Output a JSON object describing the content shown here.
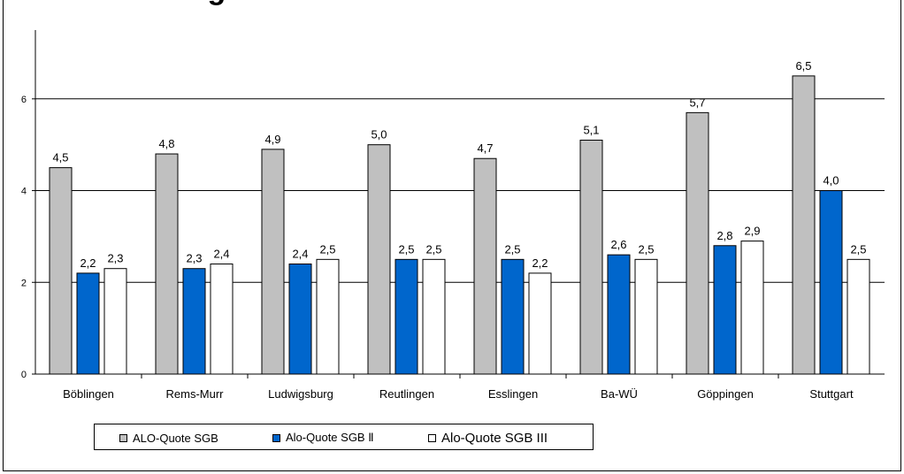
{
  "title": "…ote im Vergleich",
  "colors": {
    "sgb": "#C0C0C0",
    "sgb2": "#0066CC",
    "sgb3": "#FFFFFF"
  },
  "chart_data": {
    "type": "bar",
    "categories": [
      "Böblingen",
      "Rems-Murr",
      "Ludwigsburg",
      "Reutlingen",
      "Esslingen",
      "Ba-WÜ",
      "Göppingen",
      "Stuttgart"
    ],
    "series": [
      {
        "name": "ALO-Quote SGB",
        "values": [
          4.5,
          4.8,
          4.9,
          5.0,
          4.7,
          5.1,
          5.7,
          6.5
        ],
        "labels": [
          "4,5",
          "4,8",
          "4,9",
          "5,0",
          "4,7",
          "5,1",
          "5,7",
          "6,5"
        ]
      },
      {
        "name": "Alo-Quote SGB Ⅱ",
        "values": [
          2.2,
          2.3,
          2.4,
          2.5,
          2.5,
          2.6,
          2.8,
          4.0
        ],
        "labels": [
          "2,2",
          "2,3",
          "2,4",
          "2,5",
          "2,5",
          "2,6",
          "2,8",
          "4,0"
        ]
      },
      {
        "name": "Alo-Quote SGB III",
        "values": [
          2.3,
          2.4,
          2.5,
          2.5,
          2.2,
          2.5,
          2.9,
          2.5
        ],
        "labels": [
          "2,3",
          "2,4",
          "2,5",
          "2,5",
          "2,2",
          "2,5",
          "2,9",
          "2,5"
        ]
      }
    ],
    "ylim": [
      0,
      7.5
    ],
    "yticks": [
      0,
      2,
      4,
      6
    ],
    "grid": true,
    "legend": "bottom-left"
  }
}
